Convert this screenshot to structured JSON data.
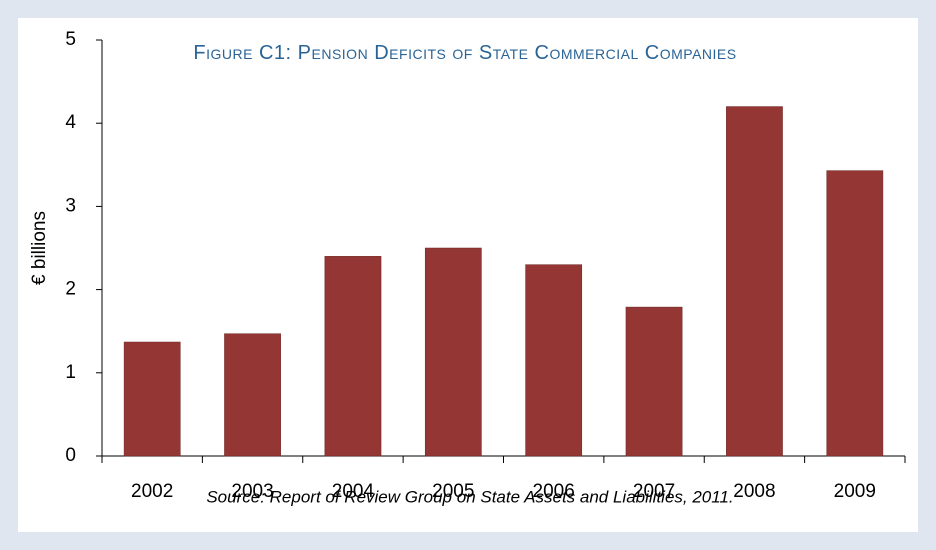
{
  "chart_data": {
    "type": "bar",
    "title": "Figure C1: Pension Deficits of State Commercial Companies",
    "y_label": "€ billions",
    "source": "Source: Report of Review Group on State Assets and Liabilities, 2011.",
    "categories": [
      "2002",
      "2003",
      "2004",
      "2005",
      "2006",
      "2007",
      "2008",
      "2009"
    ],
    "values": [
      1.37,
      1.47,
      2.4,
      2.5,
      2.3,
      1.79,
      4.2,
      3.43
    ],
    "color": "#943634",
    "ylim": [
      0,
      5
    ],
    "yticks": [
      0,
      1,
      2,
      3,
      4,
      5
    ],
    "grid": false
  }
}
